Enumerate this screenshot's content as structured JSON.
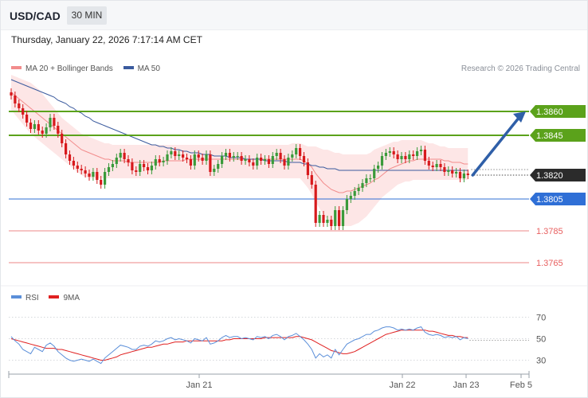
{
  "header": {
    "symbol": "USD/CAD",
    "timeframe": "30 MIN"
  },
  "timestamp": "Thursday, January 22, 2026 7:17:14 AM CET",
  "copyright": "Research © 2026 Trading Central",
  "colors": {
    "bull": "#3a9a3a",
    "bear": "#d7191c",
    "ma20": "#f28c8c",
    "band_fill": "#fde2e2",
    "ma50": "#3b5b9e",
    "resistance": "#5ba21b",
    "support": "#2f6fd6",
    "support_low": "#e86060",
    "current": "#2b2b2b",
    "arrow": "#2f5fa8",
    "rsi": "#5b8fd9",
    "rsi_ma": "#e02020"
  },
  "chart_data": [
    {
      "type": "candlestick",
      "legend": [
        {
          "label": "MA 20 + Bollinger Bands",
          "color_key": "ma20"
        },
        {
          "label": "MA 50",
          "color_key": "ma50"
        }
      ],
      "ylim": [
        1.376,
        1.388
      ],
      "grid": false,
      "x_tick_labels": [
        "Jan 21",
        "Jan 22",
        "Jan 23",
        "Feb 5"
      ],
      "levels": [
        {
          "value": 1.386,
          "label": "1.3860",
          "kind": "resistance"
        },
        {
          "value": 1.3845,
          "label": "1.3845",
          "kind": "resistance"
        },
        {
          "value": 1.382,
          "label": "1.3820",
          "kind": "current"
        },
        {
          "value": 1.3805,
          "label": "1.3805",
          "kind": "support"
        },
        {
          "value": 1.3785,
          "label": "1.3785",
          "kind": "support_low"
        },
        {
          "value": 1.3765,
          "label": "1.3765",
          "kind": "support_low"
        }
      ],
      "close": [
        1.387,
        1.3865,
        1.3862,
        1.3858,
        1.3853,
        1.3849,
        1.3852,
        1.3848,
        1.3846,
        1.385,
        1.3856,
        1.3851,
        1.3846,
        1.384,
        1.3833,
        1.3829,
        1.3826,
        1.3824,
        1.3823,
        1.3821,
        1.3819,
        1.3822,
        1.3817,
        1.3814,
        1.3822,
        1.3825,
        1.3827,
        1.3831,
        1.3834,
        1.383,
        1.3828,
        1.3823,
        1.3822,
        1.3827,
        1.3825,
        1.3823,
        1.3826,
        1.383,
        1.3828,
        1.3829,
        1.3833,
        1.3835,
        1.3832,
        1.3833,
        1.3831,
        1.383,
        1.3826,
        1.3833,
        1.3831,
        1.3829,
        1.3833,
        1.3822,
        1.3824,
        1.3827,
        1.3832,
        1.3834,
        1.3831,
        1.3832,
        1.3832,
        1.3829,
        1.383,
        1.3828,
        1.3826,
        1.3831,
        1.3829,
        1.383,
        1.3827,
        1.3832,
        1.3834,
        1.383,
        1.3826,
        1.3831,
        1.3833,
        1.3837,
        1.3832,
        1.3828,
        1.382,
        1.3814,
        1.379,
        1.3795,
        1.379,
        1.3792,
        1.3788,
        1.3798,
        1.3788,
        1.3798,
        1.3805,
        1.3807,
        1.381,
        1.3812,
        1.3815,
        1.3818,
        1.3818,
        1.3824,
        1.3826,
        1.3832,
        1.3834,
        1.3835,
        1.3833,
        1.383,
        1.3832,
        1.383,
        1.3833,
        1.3832,
        1.3835,
        1.3836,
        1.3829,
        1.3826,
        1.3825,
        1.3827,
        1.3825,
        1.3822,
        1.3823,
        1.3821,
        1.3822,
        1.3818,
        1.3821,
        1.382
      ],
      "series": [
        {
          "name": "MA 20",
          "values": [
            1.3872,
            1.387,
            1.3868,
            1.3866,
            1.3864,
            1.3862,
            1.386,
            1.3858,
            1.3856,
            1.3854,
            1.3852,
            1.385,
            1.3848,
            1.3846,
            1.3844,
            1.3842,
            1.384,
            1.3838,
            1.3836,
            1.3835,
            1.3834,
            1.3833,
            1.3832,
            1.3831,
            1.383,
            1.383,
            1.3829,
            1.3829,
            1.3829,
            1.3829,
            1.3828,
            1.3828,
            1.3828,
            1.3828,
            1.3828,
            1.3828,
            1.3828,
            1.3828,
            1.3828,
            1.3829,
            1.3829,
            1.3829,
            1.3829,
            1.3829,
            1.3829,
            1.383,
            1.383,
            1.383,
            1.383,
            1.383,
            1.383,
            1.383,
            1.383,
            1.383,
            1.383,
            1.383,
            1.383,
            1.383,
            1.383,
            1.383,
            1.383,
            1.383,
            1.383,
            1.383,
            1.383,
            1.383,
            1.383,
            1.383,
            1.383,
            1.383,
            1.383,
            1.383,
            1.383,
            1.383,
            1.383,
            1.3829,
            1.3827,
            1.3825,
            1.3821,
            1.3818,
            1.3815,
            1.3813,
            1.3811,
            1.381,
            1.3809,
            1.3809,
            1.381,
            1.381,
            1.3811,
            1.3812,
            1.3813,
            1.3814,
            1.3815,
            1.3817,
            1.3818,
            1.382,
            1.3822,
            1.3824,
            1.3825,
            1.3826,
            1.3827,
            1.3828,
            1.3829,
            1.3829,
            1.383,
            1.383,
            1.383,
            1.383,
            1.383,
            1.383,
            1.383,
            1.3829,
            1.3829,
            1.3828,
            1.3828,
            1.3828,
            1.3827,
            1.3827
          ]
        },
        {
          "name": "MA 50",
          "values": [
            1.388,
            1.3879,
            1.3878,
            1.3877,
            1.3876,
            1.3875,
            1.3874,
            1.3873,
            1.3872,
            1.3871,
            1.387,
            1.3869,
            1.3867,
            1.3866,
            1.3865,
            1.3863,
            1.3862,
            1.386,
            1.3859,
            1.3857,
            1.3856,
            1.3854,
            1.3853,
            1.3852,
            1.3851,
            1.385,
            1.3849,
            1.3848,
            1.3847,
            1.3846,
            1.3845,
            1.3844,
            1.3843,
            1.3842,
            1.3841,
            1.384,
            1.3839,
            1.3839,
            1.3838,
            1.3838,
            1.3837,
            1.3837,
            1.3836,
            1.3836,
            1.3835,
            1.3835,
            1.3834,
            1.3834,
            1.3834,
            1.3833,
            1.3833,
            1.3833,
            1.3832,
            1.3832,
            1.3832,
            1.3832,
            1.3831,
            1.3831,
            1.3831,
            1.3831,
            1.383,
            1.383,
            1.383,
            1.383,
            1.383,
            1.3829,
            1.3829,
            1.3829,
            1.3829,
            1.3829,
            1.3829,
            1.3828,
            1.3828,
            1.3828,
            1.3828,
            1.3827,
            1.3827,
            1.3826,
            1.3826,
            1.3825,
            1.3825,
            1.3824,
            1.3824,
            1.3824,
            1.3823,
            1.3823,
            1.3823,
            1.3823,
            1.3823,
            1.3823,
            1.3823,
            1.3823,
            1.3823,
            1.3823,
            1.3823,
            1.3823,
            1.3823,
            1.3823,
            1.3823,
            1.3823,
            1.3823,
            1.3823,
            1.3823,
            1.3823,
            1.3823,
            1.3823,
            1.3823,
            1.3823,
            1.3823,
            1.3823,
            1.3823,
            1.3823,
            1.3823,
            1.3823,
            1.3823,
            1.3823,
            1.3823,
            1.3823
          ]
        },
        {
          "name": "Bollinger Upper",
          "values": [
            1.3883,
            1.3882,
            1.3881,
            1.388,
            1.3879,
            1.3878,
            1.3876,
            1.3874,
            1.3871,
            1.3868,
            1.3865,
            1.3862,
            1.3859,
            1.3856,
            1.3854,
            1.3852,
            1.385,
            1.3848,
            1.3846,
            1.3845,
            1.3844,
            1.3843,
            1.3842,
            1.3841,
            1.384,
            1.384,
            1.3839,
            1.3839,
            1.3839,
            1.3839,
            1.3839,
            1.3839,
            1.3839,
            1.3839,
            1.3839,
            1.3839,
            1.3839,
            1.3839,
            1.3839,
            1.3839,
            1.3839,
            1.3839,
            1.3839,
            1.3839,
            1.3839,
            1.3839,
            1.3839,
            1.3839,
            1.3839,
            1.3839,
            1.3839,
            1.3839,
            1.3839,
            1.3839,
            1.3839,
            1.3839,
            1.3839,
            1.3839,
            1.3839,
            1.3839,
            1.3839,
            1.3839,
            1.3839,
            1.3839,
            1.3839,
            1.3839,
            1.3839,
            1.3839,
            1.3839,
            1.3839,
            1.3839,
            1.3839,
            1.384,
            1.384,
            1.384,
            1.3839,
            1.3838,
            1.3838,
            1.3838,
            1.3837,
            1.3836,
            1.3836,
            1.3835,
            1.3834,
            1.3834,
            1.3833,
            1.3833,
            1.3833,
            1.3833,
            1.3833,
            1.3833,
            1.3833,
            1.3834,
            1.3836,
            1.3837,
            1.3838,
            1.3839,
            1.384,
            1.3841,
            1.3841,
            1.3842,
            1.3842,
            1.3842,
            1.3842,
            1.3842,
            1.3842,
            1.3841,
            1.384,
            1.384,
            1.3839,
            1.3838,
            1.3838,
            1.3837,
            1.3837,
            1.3837,
            1.3837,
            1.3837,
            1.3837
          ]
        },
        {
          "name": "Bollinger Lower",
          "values": [
            1.3861,
            1.3858,
            1.3855,
            1.3852,
            1.3849,
            1.3846,
            1.3844,
            1.3842,
            1.384,
            1.3838,
            1.3836,
            1.3834,
            1.3832,
            1.383,
            1.3828,
            1.3826,
            1.3824,
            1.3822,
            1.382,
            1.3819,
            1.3818,
            1.3818,
            1.3818,
            1.3818,
            1.3818,
            1.3818,
            1.3818,
            1.3818,
            1.3818,
            1.3818,
            1.3818,
            1.3818,
            1.3818,
            1.3818,
            1.3818,
            1.3818,
            1.3818,
            1.3818,
            1.3818,
            1.3818,
            1.3818,
            1.3818,
            1.3818,
            1.3818,
            1.3818,
            1.3818,
            1.3818,
            1.3818,
            1.3818,
            1.3818,
            1.3818,
            1.3818,
            1.3818,
            1.3818,
            1.3818,
            1.3818,
            1.3818,
            1.3818,
            1.3818,
            1.3818,
            1.3818,
            1.3818,
            1.3818,
            1.3818,
            1.3818,
            1.3818,
            1.3818,
            1.3818,
            1.3818,
            1.3818,
            1.3818,
            1.3818,
            1.3818,
            1.3818,
            1.3818,
            1.3815,
            1.3812,
            1.3808,
            1.3803,
            1.3799,
            1.3795,
            1.3792,
            1.379,
            1.3789,
            1.3788,
            1.3788,
            1.3788,
            1.3788,
            1.3789,
            1.379,
            1.3792,
            1.3794,
            1.3797,
            1.38,
            1.3803,
            1.3806,
            1.3808,
            1.381,
            1.3812,
            1.3814,
            1.3815,
            1.3816,
            1.3816,
            1.3817,
            1.3817,
            1.3817,
            1.3817,
            1.3817,
            1.3817,
            1.3817,
            1.3817,
            1.3817,
            1.3817,
            1.3817,
            1.3817,
            1.3817,
            1.3817,
            1.3817
          ]
        }
      ],
      "forecast_arrow": {
        "from": 1.382,
        "to": 1.386
      }
    },
    {
      "type": "line",
      "legend": [
        {
          "label": "RSI",
          "color_key": "rsi"
        },
        {
          "label": "9MA",
          "color_key": "rsi_ma"
        }
      ],
      "ylim": [
        20,
        80
      ],
      "y_tick_labels": [
        "70",
        "50",
        "30"
      ],
      "series": [
        {
          "name": "RSI",
          "values": [
            52,
            48,
            45,
            40,
            38,
            36,
            42,
            40,
            38,
            44,
            46,
            43,
            38,
            35,
            32,
            30,
            29,
            30,
            31,
            30,
            29,
            31,
            29,
            27,
            32,
            35,
            38,
            41,
            44,
            43,
            42,
            40,
            40,
            43,
            44,
            43,
            45,
            48,
            47,
            48,
            50,
            51,
            49,
            50,
            49,
            48,
            46,
            50,
            49,
            48,
            51,
            45,
            46,
            48,
            51,
            53,
            51,
            52,
            52,
            50,
            51,
            50,
            49,
            52,
            51,
            52,
            50,
            53,
            54,
            52,
            49,
            52,
            53,
            55,
            52,
            49,
            45,
            40,
            32,
            36,
            33,
            35,
            32,
            40,
            35,
            40,
            45,
            47,
            49,
            50,
            52,
            54,
            54,
            57,
            58,
            60,
            61,
            61,
            60,
            58,
            59,
            58,
            59,
            58,
            60,
            61,
            56,
            54,
            53,
            54,
            53,
            51,
            52,
            51,
            52,
            49,
            51,
            50
          ]
        },
        {
          "name": "9MA",
          "values": [
            50,
            49,
            48,
            47,
            46,
            45,
            44,
            43,
            42,
            41,
            41,
            41,
            40,
            40,
            39,
            38,
            37,
            36,
            35,
            34,
            33,
            32,
            31,
            30,
            30,
            31,
            32,
            33,
            35,
            36,
            37,
            38,
            39,
            40,
            41,
            42,
            42,
            43,
            44,
            45,
            45,
            46,
            47,
            47,
            47,
            48,
            48,
            48,
            48,
            48,
            48,
            48,
            48,
            48,
            48,
            49,
            49,
            50,
            50,
            50,
            50,
            50,
            50,
            50,
            50,
            51,
            51,
            51,
            51,
            51,
            51,
            51,
            51,
            52,
            52,
            51,
            50,
            49,
            47,
            45,
            43,
            41,
            39,
            38,
            37,
            36,
            36,
            37,
            38,
            40,
            42,
            44,
            46,
            48,
            50,
            52,
            54,
            55,
            56,
            57,
            58,
            58,
            58,
            58,
            58,
            58,
            58,
            57,
            57,
            56,
            55,
            54,
            53,
            53,
            52,
            52,
            51,
            51
          ]
        }
      ]
    }
  ]
}
